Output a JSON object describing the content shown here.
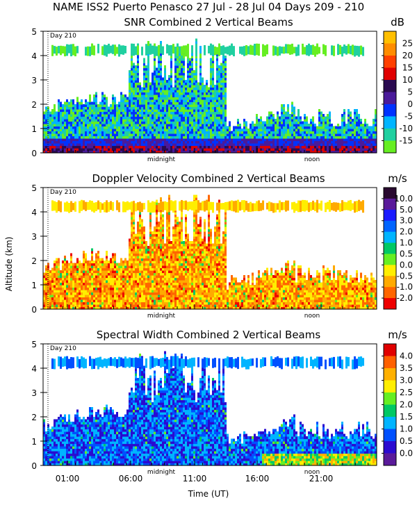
{
  "figure": {
    "title": "NAME ISS2 Puerto Penasco  27 Jul - 28 Jul 04 Days 209 - 210",
    "xlabel": "Time (UT)",
    "ylabel": "Altitude (km)",
    "day_marker": "Day 210",
    "midnight_label": "midnight",
    "noon_label": "noon",
    "x_ticks": [
      "01:00",
      "06:00",
      "11:00",
      "16:00",
      "21:00"
    ],
    "y_ticks": [
      "0",
      "1",
      "2",
      "3",
      "4",
      "5"
    ]
  },
  "chart_data": [
    {
      "type": "heatmap",
      "title": "SNR Combined 2 Vertical Beams",
      "xlabel": "",
      "ylabel": "Altitude (km)",
      "ylim": [
        0,
        5
      ],
      "colorbar": {
        "unit": "dB",
        "labels": [
          "25",
          "20",
          "15",
          "10",
          "5",
          "0",
          "-5",
          "-10",
          "-15"
        ],
        "colors": [
          "#ffbf00",
          "#ff8c00",
          "#ff4000",
          "#e00000",
          "#2a0a50",
          "#4a1a9a",
          "#0032ff",
          "#00b4ff",
          "#20d0a0",
          "#66ee22"
        ]
      },
      "features": {
        "high_layer_km": [
          4.0,
          4.4
        ],
        "surface_layer_km": [
          0,
          0.6
        ]
      }
    },
    {
      "type": "heatmap",
      "title": "Doppler Velocity Combined 2 Vertical Beams",
      "xlabel": "",
      "ylabel": "Altitude (km)",
      "ylim": [
        0,
        5
      ],
      "colorbar": {
        "unit": "m/s",
        "labels": [
          "10.0",
          "5.0",
          "3.0",
          "2.0",
          "1.0",
          "0.5",
          "0.0",
          "-0.5",
          "-1.0",
          "-2.0"
        ],
        "colors": [
          "#2a0a30",
          "#5a1a9a",
          "#1a1aff",
          "#0064ff",
          "#00b4ff",
          "#00c864",
          "#66ee22",
          "#ffee00",
          "#ffaa00",
          "#ff6600",
          "#ee0000"
        ]
      },
      "features": {
        "high_layer_km": [
          4.0,
          4.4
        ],
        "surface_layer_km": [
          0,
          0.6
        ]
      }
    },
    {
      "type": "heatmap",
      "title": "Spectral Width Combined 2 Vertical Beams",
      "xlabel": "Time (UT)",
      "ylabel": "Altitude (km)",
      "ylim": [
        0,
        5
      ],
      "colorbar": {
        "unit": "m/s",
        "labels": [
          "4.0",
          "3.5",
          "3.0",
          "2.5",
          "2.0",
          "1.5",
          "1.0",
          "0.5",
          "0.0"
        ],
        "colors": [
          "#e00000",
          "#ff6000",
          "#ffb000",
          "#ffee00",
          "#66ee22",
          "#00c864",
          "#00b4ff",
          "#0050ff",
          "#2a0ad0",
          "#5a1a9a"
        ]
      },
      "features": {
        "high_layer_km": [
          4.0,
          4.4
        ],
        "surface_layer_km": [
          0,
          0.6
        ]
      }
    }
  ]
}
